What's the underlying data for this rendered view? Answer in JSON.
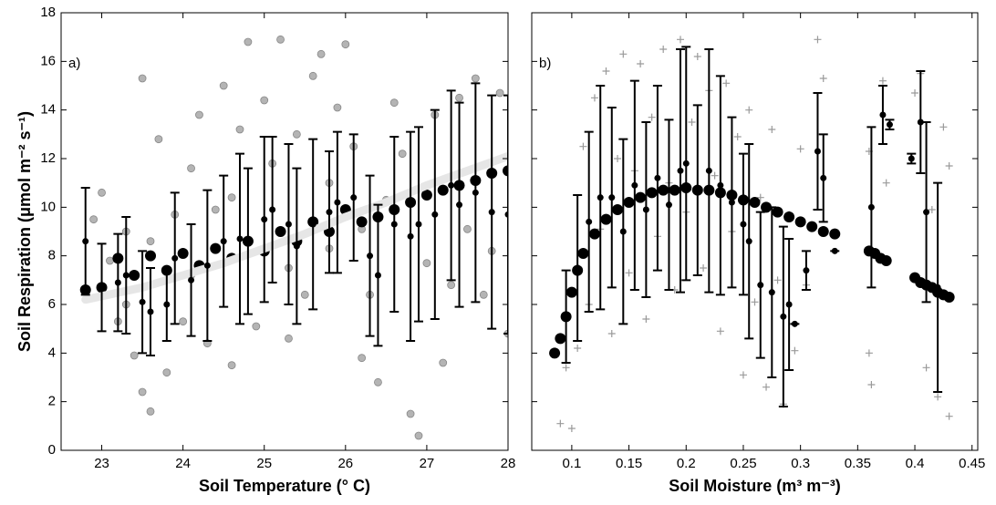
{
  "chart_data": [
    {
      "type": "scatter",
      "panel_label": "a)",
      "x_label": "Soil Temperature (° C)",
      "y_label": "Soil Respiration (μmol m⁻² s⁻¹)",
      "xlim": [
        22.5,
        28
      ],
      "ylim": [
        0,
        18
      ],
      "xticks": [
        23,
        24,
        25,
        26,
        27,
        28
      ],
      "yticks": [
        0,
        2,
        4,
        6,
        8,
        10,
        12,
        14,
        16,
        18
      ],
      "show_ytick_labels": true,
      "points": {
        "marker": "circle",
        "color": "#b4b4b4",
        "x": [
          22.9,
          23.0,
          23.1,
          23.2,
          23.3,
          23.4,
          23.5,
          23.5,
          23.6,
          23.6,
          23.7,
          23.8,
          23.9,
          24.0,
          24.1,
          24.2,
          24.3,
          24.4,
          24.5,
          24.6,
          24.7,
          24.8,
          24.9,
          25.0,
          25.1,
          25.2,
          25.3,
          25.4,
          25.5,
          25.6,
          25.7,
          25.8,
          25.9,
          26.0,
          26.1,
          26.2,
          26.3,
          26.4,
          26.5,
          26.6,
          26.7,
          26.8,
          26.9,
          27.0,
          27.1,
          27.2,
          27.3,
          27.4,
          27.5,
          27.6,
          27.7,
          27.8,
          27.9,
          28.0,
          24.1,
          24.6,
          25.3,
          25.8,
          26.2,
          23.3
        ],
        "y": [
          9.5,
          10.6,
          7.8,
          5.3,
          9.0,
          3.9,
          15.3,
          2.4,
          1.6,
          8.6,
          12.8,
          3.2,
          9.7,
          5.3,
          11.6,
          13.8,
          4.4,
          9.9,
          15.0,
          3.5,
          13.2,
          16.8,
          5.1,
          14.4,
          11.8,
          16.9,
          4.6,
          13.0,
          6.4,
          15.4,
          16.3,
          8.3,
          14.1,
          16.7,
          12.5,
          3.8,
          6.4,
          2.8,
          10.3,
          14.3,
          12.2,
          1.5,
          0.6,
          7.7,
          13.8,
          3.6,
          6.8,
          14.5,
          9.1,
          15.3,
          6.4,
          8.2,
          14.7,
          4.8,
          7.2,
          10.4,
          7.5,
          11.0,
          9.1,
          6.0
        ]
      },
      "fit": {
        "color": "#e6e6e6",
        "x": [
          22.8,
          23.5,
          24,
          24.5,
          25,
          25.5,
          26,
          26.5,
          27,
          27.5,
          28
        ],
        "y": [
          6.2,
          6.7,
          7.2,
          7.7,
          8.3,
          8.9,
          9.6,
          10.2,
          10.9,
          11.5,
          12.1
        ]
      },
      "model": {
        "marker": "circle",
        "color": "#000000",
        "x": [
          22.8,
          23.0,
          23.2,
          23.4,
          23.6,
          23.8,
          24.0,
          24.2,
          24.4,
          24.6,
          24.8,
          25.0,
          25.2,
          25.4,
          25.6,
          25.8,
          26.0,
          26.2,
          26.4,
          26.6,
          26.8,
          27.0,
          27.2,
          27.4,
          27.6,
          27.8,
          28.0
        ],
        "y": [
          6.6,
          6.7,
          7.9,
          7.2,
          8.0,
          7.4,
          8.1,
          7.6,
          8.3,
          7.9,
          8.6,
          8.2,
          9.0,
          8.6,
          9.4,
          9.0,
          9.9,
          9.4,
          9.6,
          9.9,
          10.2,
          10.5,
          10.7,
          10.9,
          11.1,
          11.4,
          11.5
        ]
      },
      "bin_means": {
        "color": "#000000",
        "x": [
          22.8,
          23.0,
          23.2,
          23.3,
          23.5,
          23.6,
          23.8,
          23.9,
          24.1,
          24.3,
          24.5,
          24.7,
          24.8,
          25.0,
          25.1,
          25.3,
          25.4,
          25.6,
          25.8,
          25.9,
          26.1,
          26.3,
          26.4,
          26.6,
          26.8,
          26.9,
          27.1,
          27.3,
          27.4,
          27.6,
          27.8,
          28.0
        ],
        "y": [
          8.6,
          6.7,
          6.9,
          7.2,
          6.1,
          5.7,
          6.0,
          7.9,
          7.0,
          7.6,
          8.6,
          8.7,
          8.6,
          9.5,
          9.9,
          9.3,
          8.4,
          9.3,
          9.8,
          10.2,
          10.4,
          8.0,
          7.2,
          9.3,
          8.8,
          9.3,
          9.7,
          10.9,
          10.1,
          10.6,
          9.8,
          9.7
        ],
        "errors": [
          2.2,
          1.8,
          2.0,
          2.4,
          2.1,
          1.8,
          1.5,
          2.7,
          2.3,
          3.1,
          2.7,
          3.5,
          3.0,
          3.4,
          3.0,
          3.3,
          3.2,
          3.5,
          2.5,
          2.9,
          2.6,
          3.3,
          2.9,
          3.6,
          4.3,
          4.0,
          4.3,
          3.9,
          4.2,
          4.5,
          4.8,
          4.9
        ]
      }
    },
    {
      "type": "scatter",
      "panel_label": "b)",
      "x_label": "Soil Moisture (m³ m⁻³)",
      "xlim": [
        0.065,
        0.455
      ],
      "ylim": [
        0,
        18
      ],
      "xticks": [
        0.1,
        0.15,
        0.2,
        0.25,
        0.3,
        0.35,
        0.4,
        0.45
      ],
      "yticks": [
        0,
        2,
        4,
        6,
        8,
        10,
        12,
        14,
        16,
        18
      ],
      "show_ytick_labels": false,
      "points": {
        "marker": "plus",
        "color": "#9a9a9a",
        "x": [
          0.09,
          0.095,
          0.1,
          0.1,
          0.105,
          0.11,
          0.115,
          0.12,
          0.125,
          0.13,
          0.135,
          0.14,
          0.145,
          0.15,
          0.155,
          0.16,
          0.165,
          0.17,
          0.175,
          0.18,
          0.185,
          0.19,
          0.195,
          0.2,
          0.205,
          0.21,
          0.215,
          0.22,
          0.225,
          0.23,
          0.235,
          0.24,
          0.245,
          0.25,
          0.255,
          0.26,
          0.265,
          0.27,
          0.275,
          0.28,
          0.285,
          0.29,
          0.295,
          0.3,
          0.305,
          0.315,
          0.32,
          0.36,
          0.36,
          0.362,
          0.372,
          0.375,
          0.4,
          0.405,
          0.41,
          0.415,
          0.42,
          0.425,
          0.43,
          0.43
        ],
        "y": [
          1.1,
          3.4,
          0.9,
          6.5,
          4.2,
          12.5,
          6.0,
          14.5,
          9.1,
          15.6,
          4.8,
          12.0,
          16.3,
          7.3,
          11.5,
          15.9,
          5.4,
          13.7,
          8.8,
          16.5,
          11.0,
          6.6,
          16.9,
          9.8,
          13.5,
          16.2,
          7.5,
          14.8,
          11.3,
          4.9,
          15.1,
          9.0,
          12.9,
          3.1,
          14.0,
          6.1,
          10.4,
          2.6,
          13.2,
          7.0,
          1.9,
          9.7,
          4.1,
          12.4,
          6.8,
          16.9,
          15.3,
          12.3,
          4.0,
          2.7,
          15.2,
          11.0,
          14.7,
          15.5,
          3.4,
          9.9,
          2.2,
          13.3,
          1.4,
          11.7
        ]
      },
      "model": {
        "marker": "circle",
        "color": "#000000",
        "x": [
          0.085,
          0.09,
          0.095,
          0.1,
          0.105,
          0.11,
          0.12,
          0.13,
          0.14,
          0.15,
          0.16,
          0.17,
          0.18,
          0.19,
          0.2,
          0.21,
          0.22,
          0.23,
          0.24,
          0.25,
          0.26,
          0.27,
          0.28,
          0.29,
          0.3,
          0.31,
          0.32,
          0.33,
          0.36,
          0.365,
          0.37,
          0.375,
          0.4,
          0.405,
          0.41,
          0.415,
          0.42,
          0.425,
          0.43
        ],
        "y": [
          4.0,
          4.6,
          5.5,
          6.5,
          7.4,
          8.1,
          8.9,
          9.5,
          9.9,
          10.2,
          10.4,
          10.6,
          10.7,
          10.7,
          10.8,
          10.7,
          10.7,
          10.6,
          10.5,
          10.3,
          10.2,
          10.0,
          9.8,
          9.6,
          9.4,
          9.2,
          9.0,
          8.9,
          8.2,
          8.1,
          7.9,
          7.8,
          7.1,
          6.9,
          6.8,
          6.7,
          6.5,
          6.4,
          6.3
        ]
      },
      "bin_means": {
        "color": "#000000",
        "x": [
          0.095,
          0.105,
          0.115,
          0.125,
          0.135,
          0.145,
          0.155,
          0.165,
          0.175,
          0.185,
          0.195,
          0.2,
          0.21,
          0.22,
          0.23,
          0.24,
          0.25,
          0.255,
          0.265,
          0.275,
          0.285,
          0.29,
          0.295,
          0.305,
          0.315,
          0.32,
          0.33,
          0.362,
          0.372,
          0.378,
          0.397,
          0.405,
          0.41,
          0.42
        ],
        "y": [
          5.5,
          7.5,
          9.4,
          10.4,
          10.4,
          9.0,
          10.9,
          9.9,
          11.2,
          10.1,
          11.5,
          11.8,
          10.7,
          11.5,
          10.9,
          10.2,
          9.3,
          8.6,
          6.8,
          6.5,
          5.5,
          6.0,
          5.2,
          7.4,
          12.3,
          11.2,
          8.2,
          10.0,
          13.8,
          13.4,
          12.0,
          13.5,
          9.8,
          6.7
        ],
        "errors": [
          1.9,
          3.0,
          3.7,
          4.6,
          3.7,
          3.8,
          4.3,
          3.6,
          3.8,
          3.5,
          5.0,
          4.8,
          3.5,
          5.0,
          4.5,
          3.5,
          2.9,
          4.0,
          3.0,
          3.5,
          3.7,
          2.7,
          0,
          0.8,
          2.4,
          1.8,
          0,
          3.3,
          1.2,
          0.2,
          0.2,
          2.1,
          3.7,
          4.3
        ]
      }
    }
  ]
}
